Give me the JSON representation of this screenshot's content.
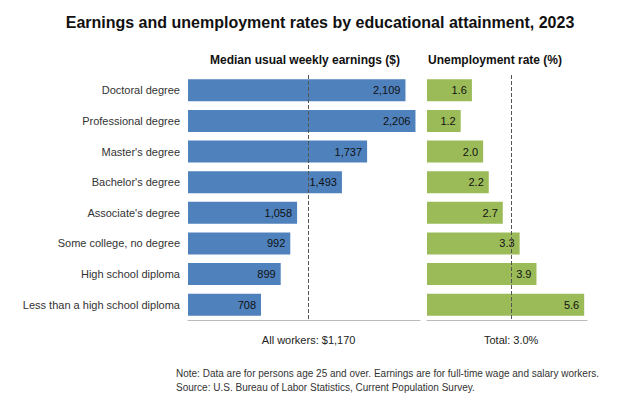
{
  "title": "Earnings and unemployment rates by educational attainment, 2023",
  "note": "Note: Data are for persons age 25 and over. Earnings are for full-time wage and salary workers.",
  "source": "Source: U.S. Bureau of Labor Statistics, Current Population Survey.",
  "chart_data": [
    {
      "type": "bar",
      "title": "Median usual weekly earnings ($)",
      "orientation": "horizontal",
      "categories": [
        "Doctoral degree",
        "Professional degree",
        "Master's degree",
        "Bachelor's degree",
        "Associate's degree",
        "Some college, no degree",
        "High school diploma",
        "Less than a high school diploma"
      ],
      "values": [
        2109,
        2206,
        1737,
        1493,
        1058,
        992,
        899,
        708
      ],
      "value_labels": [
        "2,109",
        "2,206",
        "1,737",
        "1,493",
        "1,058",
        "992",
        "899",
        "708"
      ],
      "color": "#4f81bd",
      "xlim": [
        0,
        2250
      ],
      "grid": false,
      "data_labels": true,
      "tick_labels": "y",
      "reference": {
        "value": 1170,
        "label": "All workers: $1,170"
      }
    },
    {
      "type": "bar",
      "title": "Unemployment rate (%)",
      "orientation": "horizontal",
      "categories": [
        "Doctoral degree",
        "Professional degree",
        "Master's degree",
        "Bachelor's degree",
        "Associate's degree",
        "Some college, no degree",
        "High school diploma",
        "Less than a high school diploma"
      ],
      "values": [
        1.6,
        1.2,
        2.0,
        2.2,
        2.7,
        3.3,
        3.9,
        5.6
      ],
      "value_labels": [
        "1.6",
        "1.2",
        "2.0",
        "2.2",
        "2.7",
        "3.3",
        "3.9",
        "5.6"
      ],
      "color": "#9bbb59",
      "xlim": [
        0,
        5.7
      ],
      "grid": false,
      "data_labels": true,
      "tick_labels": false,
      "reference": {
        "value": 3.0,
        "label": "Total: 3.0%"
      }
    }
  ]
}
